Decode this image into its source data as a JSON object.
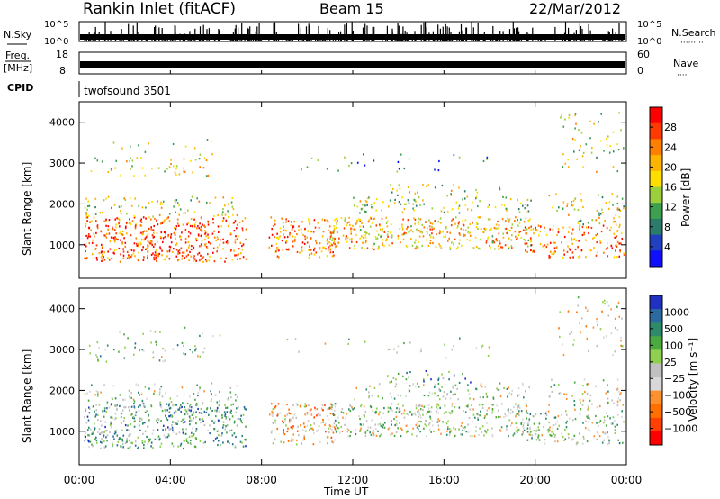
{
  "header": {
    "title": "Rankin Inlet (fitACF)",
    "beam": "Beam 15",
    "date": "22/Mar/2012"
  },
  "chart_data": [
    {
      "type": "line",
      "title": "",
      "ylabel_left": "N.Sky",
      "ylabel_right": "N.Search",
      "y_ticks_left": [
        "10^5",
        "10^0"
      ],
      "y_ticks_right": [
        "10^5",
        "10^0"
      ],
      "description_values": "noise level bursts over 24 h"
    },
    {
      "type": "line",
      "ylabel_left_1": "Freq.",
      "ylabel_left_2": "[MHz]",
      "ylabel_right": "Nave",
      "y_ticks_left": [
        "18",
        "8"
      ],
      "y_ticks_right": [
        "60",
        "0"
      ]
    },
    {
      "type": "table",
      "label": "CPID",
      "program": "twofsound 3501"
    },
    {
      "type": "heatmap",
      "ylabel": "Slant Range [km]",
      "y_ticks": [
        1000,
        2000,
        3000,
        4000
      ],
      "ylim": [
        180,
        4500
      ],
      "colorbar_label": "Power [dB]",
      "colorbar_ticks": [
        "28",
        "24",
        "20",
        "16",
        "12",
        "8",
        "4"
      ],
      "colorbar_colors": [
        "#ff0000",
        "#ff3a00",
        "#ff7f00",
        "#ffb400",
        "#ffdf00",
        "#9ccf3c",
        "#3ca050",
        "#2c7c6c",
        "#2040c0",
        "#1010ff"
      ]
    },
    {
      "type": "heatmap",
      "ylabel": "Slant Range [km]",
      "y_ticks": [
        1000,
        2000,
        3000,
        4000
      ],
      "ylim": [
        180,
        4500
      ],
      "colorbar_label": "Velocity [m s⁻¹]",
      "colorbar_ticks": [
        "1000",
        "500",
        "100",
        "25",
        "−25",
        "−100",
        "−500",
        "−1000"
      ],
      "colorbar_colors": [
        "#2030c0",
        "#2a6aa0",
        "#2d8a6a",
        "#4aaa40",
        "#90d050",
        "#c0c0c0",
        "#d8d8d8",
        "#ff9030",
        "#ff7000",
        "#ff4000",
        "#ff0000"
      ]
    }
  ],
  "x_axis": {
    "ticks": [
      "00:00",
      "04:00",
      "08:00",
      "12:00",
      "16:00",
      "20:00",
      "00:00"
    ],
    "hours": [
      0,
      4,
      8,
      12,
      16,
      20,
      24
    ],
    "label": "Time UT"
  }
}
